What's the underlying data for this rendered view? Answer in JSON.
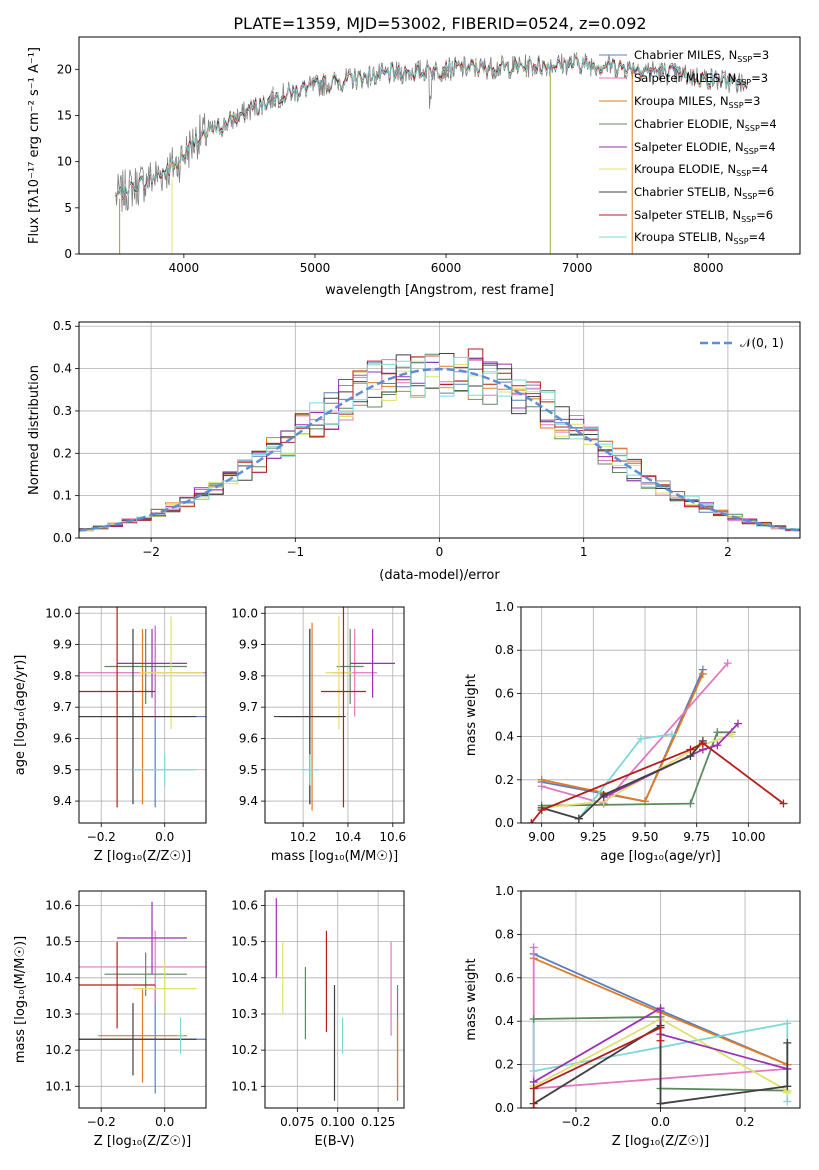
{
  "chart_data": [
    {
      "type": "line",
      "title": "PLATE=1359, MJD=53002, FIBERID=0524, z=0.092",
      "xlabel": "wavelength [Angstrom, rest frame]",
      "ylabel": "Flux [fλ10⁻¹⁷ erg cm⁻² s⁻¹ A⁻¹]",
      "xlim": [
        3200,
        8700
      ],
      "ylim": [
        0,
        23.5
      ],
      "xticks": [
        4000,
        5000,
        6000,
        7000,
        8000
      ],
      "yticks": [
        0,
        5,
        10,
        15,
        20
      ],
      "grid": false,
      "legend_position": "upper-right",
      "continuum_x": [
        3480,
        3600,
        3800,
        3950,
        4100,
        4300,
        4500,
        4700,
        4900,
        5100,
        5300,
        5500,
        5800,
        6100,
        6400,
        6700,
        7000,
        7200,
        7500,
        7800,
        8100,
        8300
      ],
      "continuum_y": [
        6.2,
        7.2,
        8.5,
        9.8,
        12.6,
        13.9,
        15.6,
        17.0,
        17.8,
        18.5,
        19.0,
        19.4,
        19.8,
        20.1,
        20.2,
        20.4,
        20.7,
        20.4,
        20.0,
        19.4,
        18.8,
        18.4
      ],
      "series": [
        {
          "name": "Chabrier MILES, N",
          "sub": "SSP",
          "suffix": "=3",
          "color": "#5a7fbd"
        },
        {
          "name": "Salpeter MILES, N",
          "sub": "SSP",
          "suffix": "=3",
          "color": "#e377c2"
        },
        {
          "name": "Kroupa MILES, N",
          "sub": "SSP",
          "suffix": "=3",
          "color": "#e07b25"
        },
        {
          "name": "Chabrier ELODIE, N",
          "sub": "SSP",
          "suffix": "=4",
          "color": "#5d8a5e"
        },
        {
          "name": "Salpeter ELODIE, N",
          "sub": "SSP",
          "suffix": "=4",
          "color": "#9b30b5"
        },
        {
          "name": "Kroupa ELODIE, N",
          "sub": "SSP",
          "suffix": "=4",
          "color": "#dfe06e"
        },
        {
          "name": "Chabrier STELIB, N",
          "sub": "SSP",
          "suffix": "=6",
          "color": "#404040"
        },
        {
          "name": "Salpeter STELIB, N",
          "sub": "SSP",
          "suffix": "=6",
          "color": "#b41e1e"
        },
        {
          "name": "Kroupa STELIB, N",
          "sub": "SSP",
          "suffix": "=4",
          "color": "#7fd8d8"
        }
      ],
      "data_color": "#808080"
    },
    {
      "type": "line",
      "xlabel": "(data-model)/error",
      "ylabel": "Normed distribution",
      "xlim": [
        -2.5,
        2.5
      ],
      "ylim": [
        0,
        0.51
      ],
      "xticks": [
        -2,
        -1,
        0,
        1,
        2
      ],
      "yticks": [
        0.0,
        0.1,
        0.2,
        0.3,
        0.4,
        0.5
      ],
      "grid": true,
      "legend_position": "upper-right",
      "reference": {
        "label": "𝒩(0, 1)",
        "color": "#5a8fd8"
      }
    },
    {
      "type": "scatter",
      "xlabel": "Z [log₁₀(Z/Z☉)]",
      "ylabel": "age  [log₁₀(age/yr)]",
      "xlim": [
        -0.27,
        0.13
      ],
      "ylim": [
        9.33,
        10.02
      ],
      "xticks": [
        -0.2,
        0.0
      ],
      "yticks": [
        9.4,
        9.5,
        9.6,
        9.7,
        9.8,
        9.9,
        10.0
      ],
      "grid": true,
      "points": [
        {
          "x": -0.03,
          "y": 9.67,
          "xerr": 0.26,
          "yerr": 0.29,
          "color": "#5a7fbd"
        },
        {
          "x": -0.03,
          "y": 9.81,
          "xerr": 0.26,
          "yerr": 0.15,
          "color": "#e377c2"
        },
        {
          "x": -0.07,
          "y": 9.67,
          "xerr": 0.14,
          "yerr": 0.28,
          "color": "#e07b25"
        },
        {
          "x": -0.06,
          "y": 9.83,
          "xerr": 0.13,
          "yerr": 0.12,
          "color": "#5d8a5e"
        },
        {
          "x": -0.04,
          "y": 9.84,
          "xerr": 0.11,
          "yerr": 0.11,
          "color": "#9b30b5"
        },
        {
          "x": 0.02,
          "y": 9.81,
          "xerr": 0.1,
          "yerr": 0.18,
          "color": "#dfe06e"
        },
        {
          "x": -0.1,
          "y": 9.67,
          "xerr": 0.2,
          "yerr": 0.28,
          "color": "#404040"
        },
        {
          "x": -0.15,
          "y": 9.75,
          "xerr": 0.12,
          "yerr": 0.37,
          "color": "#b41e1e"
        },
        {
          "x": 0.0,
          "y": 9.5,
          "xerr": 0.1,
          "yerr": 0.05,
          "color": "#7fd8d8"
        }
      ]
    },
    {
      "type": "scatter",
      "xlabel": "mass [log₁₀(M/M☉)]",
      "xlim": [
        10.03,
        10.65
      ],
      "ylim": [
        9.33,
        10.02
      ],
      "xticks": [
        10.2,
        10.4,
        10.6
      ],
      "yticks": [
        9.4,
        9.5,
        9.6,
        9.7,
        9.8,
        9.9,
        10.0
      ],
      "grid": true,
      "points": [
        {
          "x": 10.23,
          "y": 9.67,
          "xerr": 0.14,
          "yerr": 0.28,
          "color": "#5a7fbd"
        },
        {
          "x": 10.43,
          "y": 9.81,
          "xerr": 0.1,
          "yerr": 0.14,
          "color": "#e377c2"
        },
        {
          "x": 10.24,
          "y": 9.67,
          "xerr": 0.12,
          "yerr": 0.3,
          "color": "#e07b25"
        },
        {
          "x": 10.41,
          "y": 9.83,
          "xerr": 0.06,
          "yerr": 0.12,
          "color": "#5d8a5e"
        },
        {
          "x": 10.51,
          "y": 9.84,
          "xerr": 0.1,
          "yerr": 0.11,
          "color": "#9b30b5"
        },
        {
          "x": 10.36,
          "y": 9.81,
          "xerr": 0.06,
          "yerr": 0.18,
          "color": "#dfe06e"
        },
        {
          "x": 10.23,
          "y": 9.67,
          "xerr": 0.16,
          "yerr": 0.28,
          "color": "#404040"
        },
        {
          "x": 10.38,
          "y": 9.75,
          "xerr": 0.1,
          "yerr": 0.37,
          "color": "#b41e1e"
        },
        {
          "x": 10.23,
          "y": 9.5,
          "xerr": 0.04,
          "yerr": 0.05,
          "color": "#7fd8d8"
        }
      ]
    },
    {
      "type": "line",
      "xlabel": "age  [log₁₀(age/yr)]",
      "ylabel": "mass weight",
      "xlim": [
        8.9,
        10.25
      ],
      "ylim": [
        0,
        1.0
      ],
      "xticks": [
        9.0,
        9.25,
        9.5,
        9.75,
        10.0
      ],
      "yticks": [
        0.0,
        0.2,
        0.4,
        0.6,
        0.8,
        1.0
      ],
      "grid": true,
      "series": [
        {
          "color": "#5a7fbd",
          "x": [
            9.0,
            9.5,
            9.78
          ],
          "y": [
            0.19,
            0.1,
            0.71
          ]
        },
        {
          "color": "#e07b25",
          "x": [
            9.0,
            9.5,
            9.78
          ],
          "y": [
            0.2,
            0.1,
            0.69
          ]
        },
        {
          "color": "#e377c2",
          "x": [
            9.0,
            9.3,
            9.9
          ],
          "y": [
            0.17,
            0.09,
            0.74
          ]
        },
        {
          "color": "#7fd8d8",
          "x": [
            9.18,
            9.48,
            9.63
          ],
          "y": [
            0.02,
            0.39,
            0.41
          ]
        },
        {
          "color": "#5d8a5e",
          "x": [
            9.0,
            9.72,
            9.85,
            9.92
          ],
          "y": [
            0.08,
            0.09,
            0.42,
            0.42
          ]
        },
        {
          "color": "#dfe06e",
          "x": [
            9.0,
            9.3,
            9.75,
            9.92
          ],
          "y": [
            0.07,
            0.1,
            0.35,
            0.41
          ]
        },
        {
          "color": "#9b30b5",
          "x": [
            9.3,
            9.78,
            9.85,
            9.95
          ],
          "y": [
            0.12,
            0.34,
            0.36,
            0.46
          ]
        },
        {
          "color": "#404040",
          "x": [
            9.0,
            9.18,
            9.3,
            9.72,
            9.78
          ],
          "y": [
            0.07,
            0.02,
            0.13,
            0.31,
            0.38
          ]
        },
        {
          "color": "#b41e1e",
          "x": [
            8.95,
            9.0,
            9.72,
            9.78,
            10.17
          ],
          "y": [
            0.0,
            0.06,
            0.34,
            0.37,
            0.09
          ]
        }
      ]
    },
    {
      "type": "scatter",
      "xlabel": "Z [log₁₀(Z/Z☉)]",
      "ylabel": "mass [log₁₀(M/M☉)]",
      "xlim": [
        -0.27,
        0.13
      ],
      "ylim": [
        10.04,
        10.64
      ],
      "xticks": [
        -0.2,
        0.0
      ],
      "yticks": [
        10.1,
        10.2,
        10.3,
        10.4,
        10.5,
        10.6
      ],
      "grid": true,
      "points": [
        {
          "x": -0.03,
          "y": 10.23,
          "xerr": 0.26,
          "yerr": 0.15,
          "color": "#5a7fbd"
        },
        {
          "x": -0.03,
          "y": 10.43,
          "xerr": 0.26,
          "yerr": 0.1,
          "color": "#e377c2"
        },
        {
          "x": -0.07,
          "y": 10.24,
          "xerr": 0.14,
          "yerr": 0.13,
          "color": "#e07b25"
        },
        {
          "x": -0.06,
          "y": 10.41,
          "xerr": 0.13,
          "yerr": 0.06,
          "color": "#5d8a5e"
        },
        {
          "x": -0.04,
          "y": 10.51,
          "xerr": 0.11,
          "yerr": 0.1,
          "color": "#9b30b5"
        },
        {
          "x": 0.0,
          "y": 10.37,
          "xerr": 0.1,
          "yerr": 0.07,
          "color": "#dfe06e"
        },
        {
          "x": -0.1,
          "y": 10.23,
          "xerr": 0.2,
          "yerr": 0.1,
          "color": "#404040"
        },
        {
          "x": -0.15,
          "y": 10.38,
          "xerr": 0.12,
          "yerr": 0.12,
          "color": "#b41e1e"
        },
        {
          "x": 0.05,
          "y": 10.24,
          "xerr": 0.01,
          "yerr": 0.05,
          "color": "#7fd8d8"
        }
      ]
    },
    {
      "type": "scatter",
      "xlabel": "E(B-V)",
      "xlim": [
        0.055,
        0.141
      ],
      "ylim": [
        10.04,
        10.64
      ],
      "xticks": [
        0.075,
        0.1,
        0.125
      ],
      "xtick_labels": [
        "0.075",
        "0.100",
        "0.125"
      ],
      "yticks": [
        10.1,
        10.2,
        10.3,
        10.4,
        10.5,
        10.6
      ],
      "grid": true,
      "points": [
        {
          "x": 0.137,
          "y": 10.22,
          "yerr": 0.16,
          "color": "#5a7fbd"
        },
        {
          "x": 0.133,
          "y": 10.37,
          "yerr": 0.13,
          "color": "#e377c2"
        },
        {
          "x": 0.137,
          "y": 10.18,
          "yerr": 0.11,
          "color": "#e07b25"
        },
        {
          "x": 0.08,
          "y": 10.33,
          "yerr": 0.1,
          "color": "#5d8a5e"
        },
        {
          "x": 0.062,
          "y": 10.51,
          "yerr": 0.11,
          "color": "#9b30b5"
        },
        {
          "x": 0.066,
          "y": 10.4,
          "yerr": 0.1,
          "color": "#dfe06e"
        },
        {
          "x": 0.098,
          "y": 10.22,
          "yerr": 0.16,
          "color": "#404040"
        },
        {
          "x": 0.093,
          "y": 10.39,
          "yerr": 0.14,
          "color": "#b41e1e"
        },
        {
          "x": 0.103,
          "y": 10.24,
          "yerr": 0.05,
          "color": "#7fd8d8"
        }
      ]
    },
    {
      "type": "line",
      "xlabel": "Z [log₁₀(Z/Z☉)]",
      "ylabel": "mass weight",
      "xlim": [
        -0.33,
        0.33
      ],
      "ylim": [
        0,
        1.0
      ],
      "xticks": [
        -0.2,
        0.0,
        0.2
      ],
      "yticks": [
        0.0,
        0.2,
        0.4,
        0.6,
        0.8,
        1.0
      ],
      "grid": true,
      "series": [
        {
          "color": "#5a7fbd",
          "x": [
            -0.3,
            0.0,
            0.3
          ],
          "y": [
            0.71,
            0.45,
            0.2
          ]
        },
        {
          "color": "#e07b25",
          "x": [
            -0.3,
            0.0,
            0.3
          ],
          "y": [
            0.69,
            0.44,
            0.2
          ]
        },
        {
          "color": "#e377c2",
          "x": [
            -0.3,
            -0.3,
            0.3
          ],
          "y": [
            0.74,
            0.09,
            0.18
          ]
        },
        {
          "color": "#7fd8d8",
          "x": [
            -0.3,
            -0.3,
            0.3,
            0.3
          ],
          "y": [
            0.41,
            0.17,
            0.39,
            0.03
          ]
        },
        {
          "color": "#5d8a5e",
          "x": [
            -0.3,
            0.0,
            0.0,
            0.3
          ],
          "y": [
            0.41,
            0.42,
            0.09,
            0.08
          ]
        },
        {
          "color": "#dfe06e",
          "x": [
            -0.3,
            0.0,
            0.3,
            0.3
          ],
          "y": [
            0.1,
            0.41,
            0.08,
            0.07
          ]
        },
        {
          "color": "#9b30b5",
          "x": [
            -0.3,
            0.0,
            0.0,
            0.3
          ],
          "y": [
            0.12,
            0.46,
            0.34,
            0.18
          ]
        },
        {
          "color": "#404040",
          "x": [
            -0.3,
            0.0,
            0.0,
            0.3,
            0.3
          ],
          "y": [
            0.02,
            0.38,
            0.02,
            0.1,
            0.3
          ]
        },
        {
          "color": "#b41e1e",
          "x": [
            -0.3,
            -0.3,
            0.0,
            0.0
          ],
          "y": [
            0.0,
            0.09,
            0.37,
            0.31
          ]
        }
      ]
    }
  ]
}
